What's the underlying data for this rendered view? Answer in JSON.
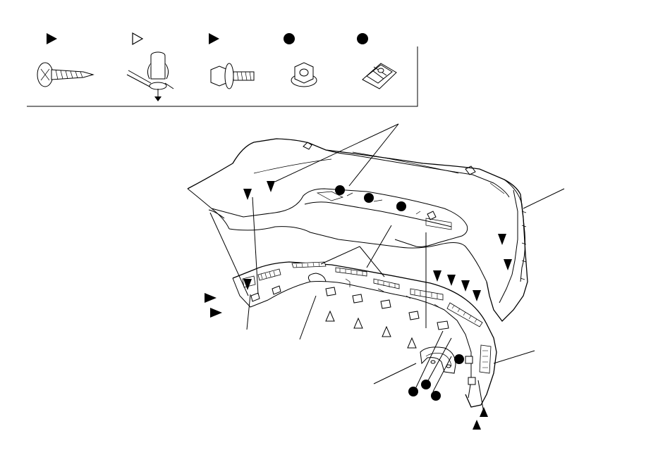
{
  "diagram": {
    "legend": {
      "items": [
        {
          "key": "self-tapping-screw",
          "marker": "filled-triangle",
          "icon": "screw-icon"
        },
        {
          "key": "push-clip",
          "marker": "open-triangle",
          "icon": "push-clip-icon"
        },
        {
          "key": "flange-bolt",
          "marker": "filled-triangle",
          "icon": "flange-bolt-icon"
        },
        {
          "key": "flange-nut",
          "marker": "filled-circle",
          "icon": "flange-nut-icon"
        },
        {
          "key": "clip-nut",
          "marker": "filled-circle",
          "icon": "clip-nut-icon"
        }
      ]
    },
    "colors": {
      "ink": "#000000",
      "paper": "#ffffff"
    }
  }
}
